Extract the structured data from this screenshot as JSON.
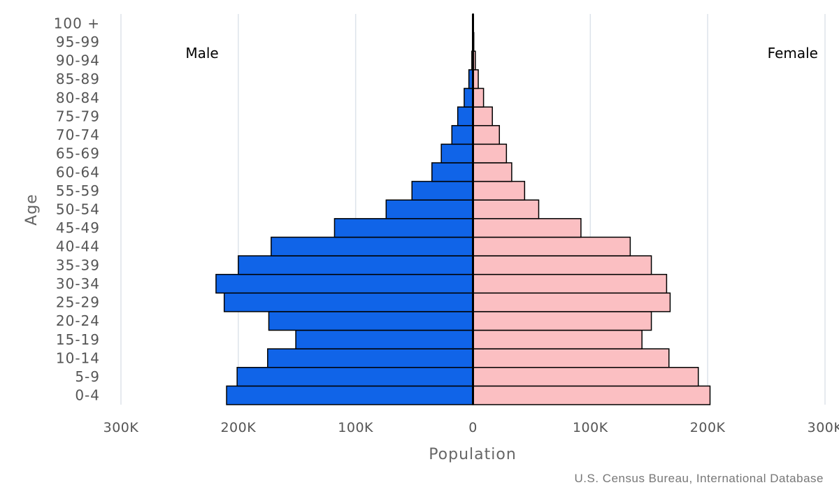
{
  "chart_data": {
    "type": "bar",
    "orientation": "horizontal",
    "subtype": "population-pyramid",
    "categories": [
      "0-4",
      "5-9",
      "10-14",
      "15-19",
      "20-24",
      "25-29",
      "30-34",
      "35-39",
      "40-44",
      "45-49",
      "50-54",
      "55-59",
      "60-64",
      "65-69",
      "70-74",
      "75-79",
      "80-84",
      "85-89",
      "90-94",
      "95-99",
      "100 +"
    ],
    "series": [
      {
        "name": "Male",
        "color": "#1064e8",
        "values": [
          210000,
          201000,
          175000,
          151000,
          174000,
          212000,
          219000,
          200000,
          172000,
          118000,
          74000,
          52000,
          35000,
          27000,
          18000,
          13000,
          7500,
          3500,
          1000,
          300,
          100
        ]
      },
      {
        "name": "Female",
        "color": "#fbbfc2",
        "values": [
          202000,
          192000,
          167000,
          144000,
          152000,
          168000,
          165000,
          152000,
          134000,
          92000,
          56000,
          44000,
          33000,
          28500,
          22500,
          16500,
          9000,
          4500,
          2000,
          700,
          200
        ]
      }
    ],
    "xlabel": "Population",
    "ylabel": "Age",
    "xlim": [
      -300000,
      300000
    ],
    "x_ticks": [
      {
        "value": -300000,
        "label": "300K"
      },
      {
        "value": -200000,
        "label": "200K"
      },
      {
        "value": -100000,
        "label": "100K"
      },
      {
        "value": 0,
        "label": "0"
      },
      {
        "value": 100000,
        "label": "100K"
      },
      {
        "value": 200000,
        "label": "200K"
      },
      {
        "value": 300000,
        "label": "300K"
      }
    ],
    "grid": true,
    "legend": {
      "placement": "top",
      "left_label": "Male",
      "right_label": "Female"
    },
    "source": "U.S. Census Bureau, International Database"
  }
}
